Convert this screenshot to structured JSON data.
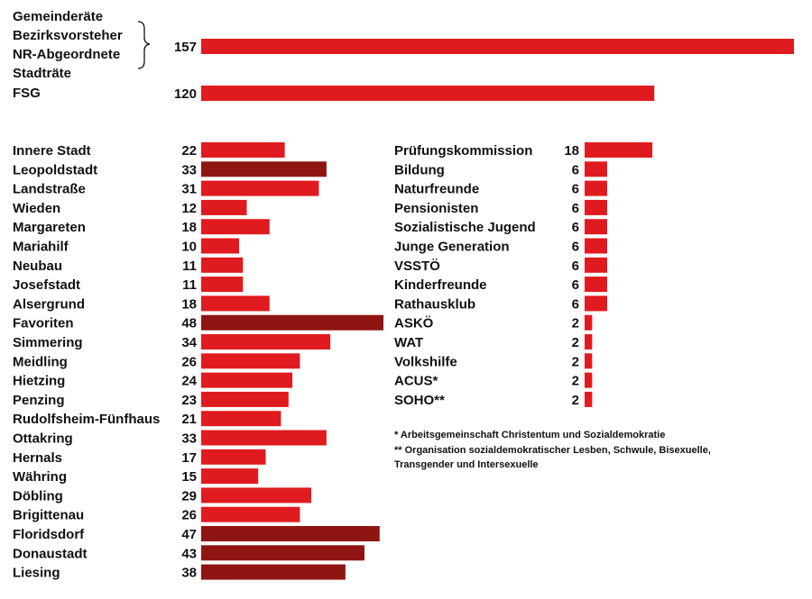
{
  "colors": {
    "bar": "#e01b1f",
    "bar_dark": "#8e1512",
    "text": "#111111"
  },
  "chart_data": [
    {
      "type": "bar",
      "orientation": "horizontal",
      "categories": [
        "Gemeinderäte / Bezirksvorsteher / NR-Abgeordnete / Stadträte",
        "FSG"
      ],
      "label_lines": [
        [
          "Gemeinderäte",
          "Bezirksvorsteher",
          "NR-Abgeordnete",
          "Stadträte"
        ],
        [
          "FSG"
        ]
      ],
      "values": [
        157,
        120
      ],
      "bracket_rows": [
        0,
        1,
        2
      ],
      "grid": false
    },
    {
      "type": "bar",
      "orientation": "horizontal",
      "categories": [
        "Innere Stadt",
        "Leopoldstadt",
        "Landstraße",
        "Wieden",
        "Margareten",
        "Mariahilf",
        "Neubau",
        "Josefstadt",
        "Alsergrund",
        "Favoriten",
        "Simmering",
        "Meidling",
        "Hietzing",
        "Penzing",
        "Rudolfsheim-Fünfhaus",
        "Ottakring",
        "Hernals",
        "Währing",
        "Döbling",
        "Brigittenau",
        "Floridsdorf",
        "Donaustadt",
        "Liesing"
      ],
      "values": [
        22,
        33,
        31,
        12,
        18,
        10,
        11,
        11,
        18,
        48,
        34,
        26,
        24,
        23,
        21,
        33,
        17,
        15,
        29,
        26,
        47,
        43,
        38
      ],
      "highlighted": [
        false,
        true,
        false,
        false,
        false,
        false,
        false,
        false,
        false,
        true,
        false,
        false,
        false,
        false,
        false,
        false,
        false,
        false,
        false,
        false,
        true,
        true,
        true
      ],
      "grid": false
    },
    {
      "type": "bar",
      "orientation": "horizontal",
      "categories": [
        "Prüfungskommission",
        "Bildung",
        "Naturfreunde",
        "Pensionisten",
        "Sozialistische Jugend",
        "Junge Generation",
        "VSSTÖ",
        "Kinderfreunde",
        "Rathausklub",
        "ASKÖ",
        "WAT",
        "Volkshilfe",
        "ACUS*",
        "SOHO**"
      ],
      "values": [
        18,
        6,
        6,
        6,
        6,
        6,
        6,
        6,
        6,
        2,
        2,
        2,
        2,
        2
      ],
      "grid": false
    }
  ],
  "footnotes": [
    "*  Arbeitsgemeinschaft Christentum und Sozialdemokratie",
    "** Organisation sozialdemokratischer Lesben, Schwule, Bisexuelle,",
    "    Transgender und Intersexuelle"
  ]
}
